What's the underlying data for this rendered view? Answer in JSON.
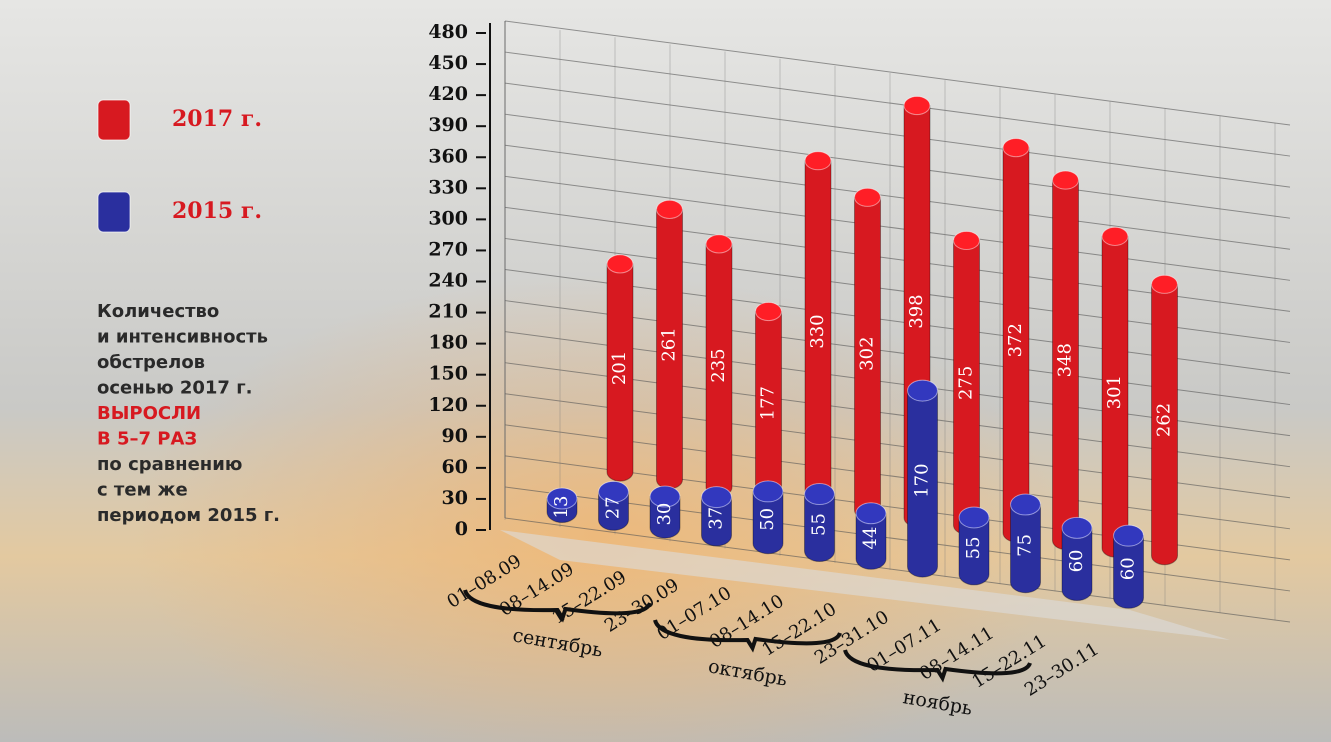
{
  "chart_data": {
    "type": "bar3d",
    "categories": [
      "01–08.09",
      "08–14.09",
      "15–22.09",
      "23–30.09",
      "01–07.10",
      "08–14.10",
      "15–22.10",
      "23–31.10",
      "01–07.11",
      "08–14.11",
      "15–22.11",
      "23–30.11"
    ],
    "series": [
      {
        "name": "2017 г.",
        "color": "#d71920",
        "values": [
          201,
          261,
          235,
          177,
          330,
          302,
          398,
          275,
          372,
          348,
          301,
          262
        ]
      },
      {
        "name": "2015 г.",
        "color": "#2a2f9e",
        "values": [
          13,
          27,
          30,
          37,
          50,
          55,
          44,
          170,
          55,
          75,
          60,
          60
        ]
      }
    ],
    "ylim": [
      0,
      480
    ],
    "yticks": [
      0,
      30,
      60,
      90,
      120,
      150,
      180,
      210,
      240,
      270,
      300,
      330,
      360,
      390,
      420,
      450,
      480
    ],
    "grid": true,
    "group_labels": [
      "сентябрь",
      "октябрь",
      "ноябрь"
    ],
    "annotation": [
      "Количество",
      "и интенсивность",
      "обстрелов",
      "осенью 2017 г."
    ],
    "annotation_highlight": [
      "ВЫРОСЛИ",
      "В 5–7 РАЗ"
    ],
    "annotation_after": [
      "по сравнению",
      "с тем же",
      "периодом 2015 г."
    ]
  }
}
